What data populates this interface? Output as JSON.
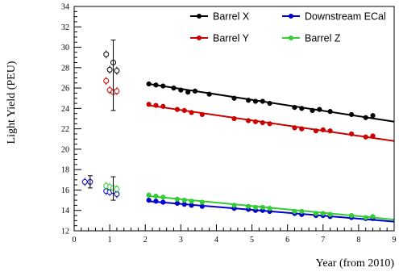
{
  "chart_data": {
    "type": "scatter",
    "xlabel": "Year (from 2010)",
    "ylabel": "Light Yield (PEU)",
    "xlim": [
      0,
      9
    ],
    "ylim": [
      12,
      34
    ],
    "xticks": [
      "0",
      "1",
      "2",
      "3",
      "4",
      "5",
      "6",
      "7",
      "8",
      "9"
    ],
    "yticks": [
      "12",
      "14",
      "16",
      "18",
      "20",
      "22",
      "24",
      "26",
      "28",
      "30",
      "32",
      "34"
    ],
    "legend_position": "top-right",
    "series": [
      {
        "name": "Barrel X",
        "color": "#000000",
        "points": [
          [
            2.1,
            26.4
          ],
          [
            2.3,
            26.3
          ],
          [
            2.5,
            26.2
          ],
          [
            2.8,
            26.0
          ],
          [
            3.0,
            25.8
          ],
          [
            3.2,
            25.6
          ],
          [
            3.4,
            25.7
          ],
          [
            3.8,
            25.4
          ],
          [
            4.5,
            25.0
          ],
          [
            4.9,
            24.8
          ],
          [
            5.1,
            24.7
          ],
          [
            5.3,
            24.7
          ],
          [
            5.5,
            24.5
          ],
          [
            6.2,
            24.1
          ],
          [
            6.4,
            24.0
          ],
          [
            6.7,
            23.8
          ],
          [
            6.9,
            23.9
          ],
          [
            7.2,
            23.7
          ],
          [
            7.8,
            23.4
          ],
          [
            8.2,
            23.1
          ],
          [
            8.4,
            23.3
          ]
        ],
        "fit": [
          [
            2.1,
            26.4
          ],
          [
            9.0,
            22.7
          ]
        ],
        "early_points": [
          [
            0.9,
            29.3
          ],
          [
            1.0,
            27.8
          ],
          [
            1.1,
            28.5
          ],
          [
            1.2,
            27.7
          ]
        ]
      },
      {
        "name": "Barrel Y",
        "color": "#cc0000",
        "points": [
          [
            2.1,
            24.4
          ],
          [
            2.3,
            24.3
          ],
          [
            2.5,
            24.2
          ],
          [
            2.9,
            23.9
          ],
          [
            3.1,
            23.8
          ],
          [
            3.3,
            23.6
          ],
          [
            3.6,
            23.4
          ],
          [
            4.5,
            23.0
          ],
          [
            4.9,
            22.8
          ],
          [
            5.1,
            22.7
          ],
          [
            5.3,
            22.6
          ],
          [
            5.5,
            22.5
          ],
          [
            6.2,
            22.1
          ],
          [
            6.4,
            22.0
          ],
          [
            6.8,
            21.8
          ],
          [
            7.0,
            21.9
          ],
          [
            7.2,
            21.8
          ],
          [
            7.8,
            21.5
          ],
          [
            8.2,
            21.2
          ],
          [
            8.4,
            21.3
          ]
        ],
        "fit": [
          [
            2.1,
            24.3
          ],
          [
            9.0,
            20.8
          ]
        ],
        "early_points": [
          [
            0.9,
            26.7
          ],
          [
            1.0,
            25.8
          ],
          [
            1.1,
            25.6
          ],
          [
            1.2,
            25.7
          ]
        ]
      },
      {
        "name": "Downstream ECal",
        "color": "#0000cc",
        "points": [
          [
            2.1,
            15.0
          ],
          [
            2.3,
            14.9
          ],
          [
            2.5,
            14.8
          ],
          [
            2.9,
            14.7
          ],
          [
            3.1,
            14.6
          ],
          [
            3.3,
            14.5
          ],
          [
            3.6,
            14.4
          ],
          [
            4.5,
            14.2
          ],
          [
            4.9,
            14.1
          ],
          [
            5.1,
            14.0
          ],
          [
            5.3,
            14.0
          ],
          [
            5.5,
            13.9
          ],
          [
            6.2,
            13.7
          ],
          [
            6.4,
            13.6
          ],
          [
            6.8,
            13.5
          ],
          [
            7.0,
            13.5
          ],
          [
            7.2,
            13.4
          ],
          [
            7.8,
            13.3
          ],
          [
            8.2,
            13.2
          ],
          [
            8.4,
            13.2
          ]
        ],
        "fit": [
          [
            2.1,
            14.9
          ],
          [
            9.0,
            12.9
          ]
        ],
        "early_points": [
          [
            0.3,
            16.8
          ],
          [
            0.45,
            16.8
          ],
          [
            0.9,
            15.9
          ],
          [
            1.0,
            15.8
          ],
          [
            1.1,
            15.9
          ],
          [
            1.2,
            15.6
          ]
        ]
      },
      {
        "name": "Barrel Z",
        "color": "#33cc33",
        "points": [
          [
            2.1,
            15.5
          ],
          [
            2.3,
            15.4
          ],
          [
            2.5,
            15.3
          ],
          [
            2.9,
            15.1
          ],
          [
            3.1,
            15.0
          ],
          [
            3.3,
            14.9
          ],
          [
            3.6,
            14.8
          ],
          [
            4.5,
            14.5
          ],
          [
            4.9,
            14.4
          ],
          [
            5.1,
            14.3
          ],
          [
            5.3,
            14.3
          ],
          [
            5.5,
            14.2
          ],
          [
            6.2,
            13.9
          ],
          [
            6.4,
            13.9
          ],
          [
            6.8,
            13.7
          ],
          [
            7.0,
            13.7
          ],
          [
            7.2,
            13.6
          ],
          [
            7.8,
            13.5
          ],
          [
            8.2,
            13.3
          ],
          [
            8.4,
            13.4
          ]
        ],
        "fit": [
          [
            2.1,
            15.4
          ],
          [
            9.0,
            13.1
          ]
        ],
        "early_points": [
          [
            0.9,
            16.4
          ],
          [
            1.0,
            16.3
          ],
          [
            1.1,
            16.2
          ],
          [
            1.2,
            16.1
          ]
        ]
      }
    ]
  }
}
